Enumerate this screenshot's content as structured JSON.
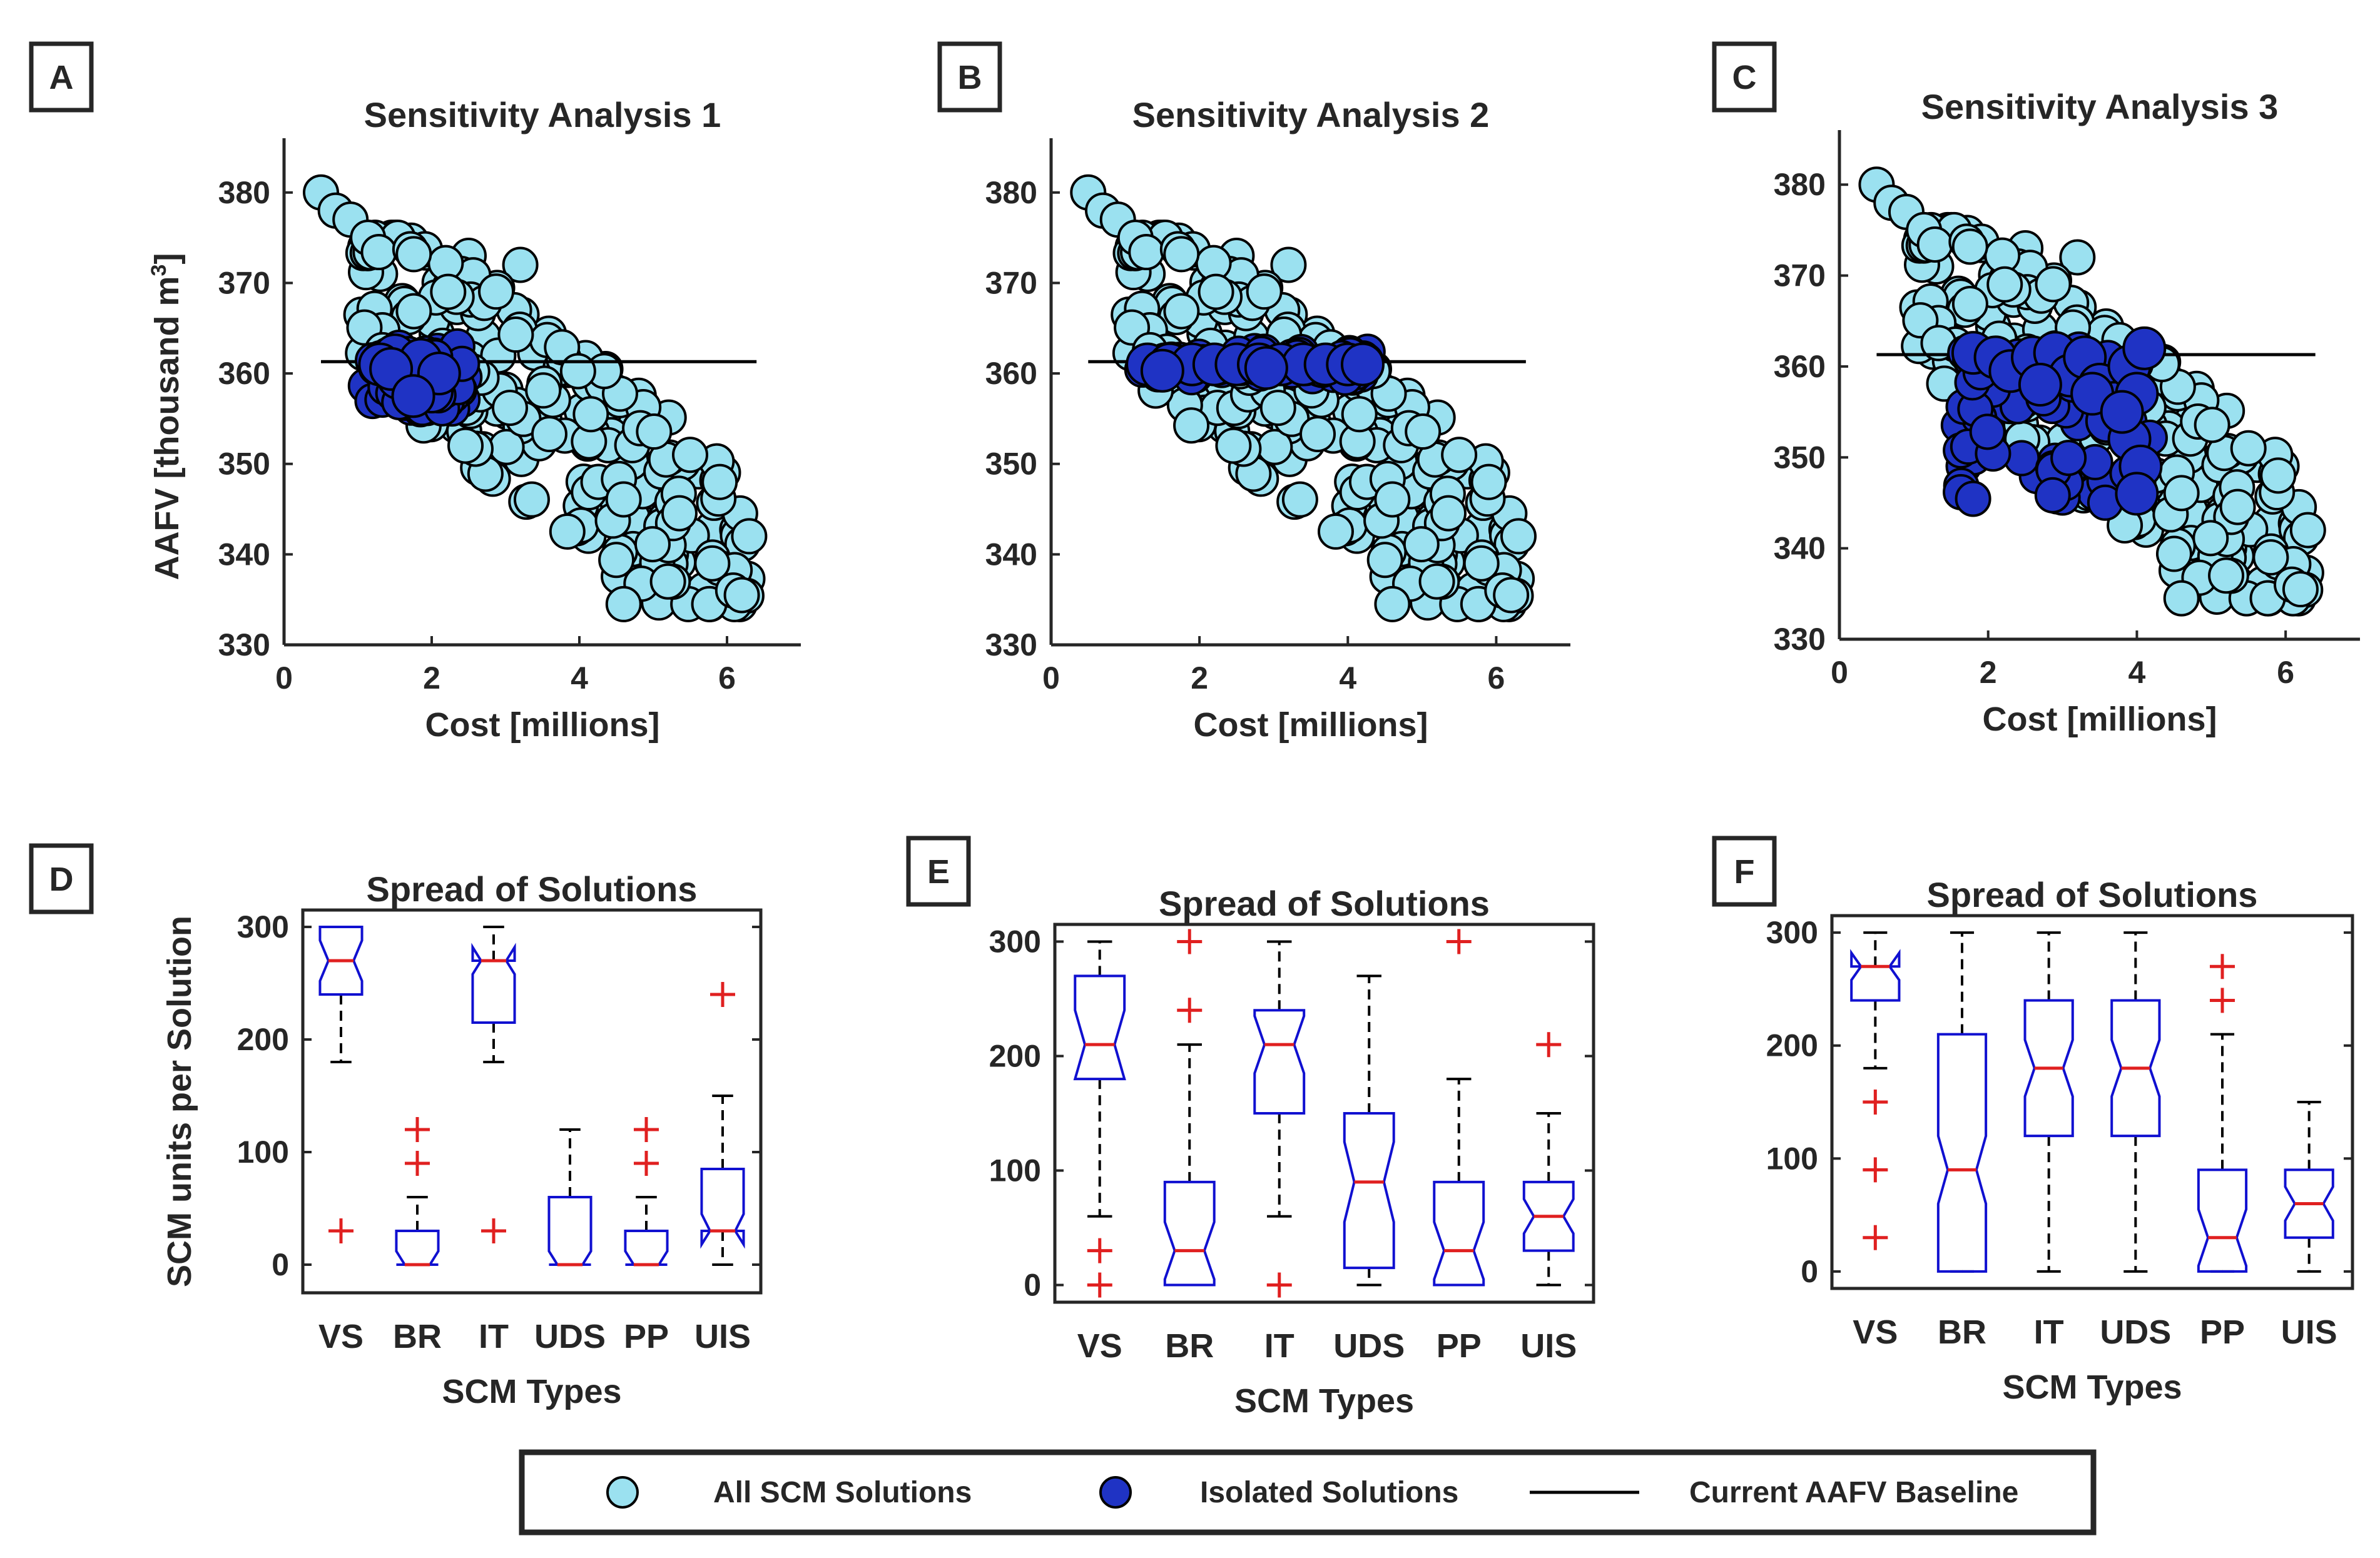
{
  "colors": {
    "all_solutions": "#9be1f0",
    "isolated": "#1f33c4",
    "box": "#1010d0",
    "median": "#e02020",
    "outlier": "#e02020",
    "axis": "#262626",
    "whisker": "#000000"
  },
  "legend": {
    "all": "All SCM Solutions",
    "isolated": "Isolated Solutions",
    "baseline": "Current AAFV Baseline"
  },
  "chart_data": [
    {
      "panel": "A",
      "type": "scatter",
      "title": "Sensitivity Analysis 1",
      "xlabel": "Cost [millions]",
      "ylabel": "AAFV [thousand m",
      "ylabel_sup": "3",
      "ylabel_end": "]",
      "xlim": [
        0,
        7
      ],
      "ylim": [
        330,
        386
      ],
      "xticks": [
        0,
        2,
        4,
        6
      ],
      "yticks": [
        330,
        340,
        350,
        360,
        370,
        380
      ],
      "baseline": {
        "y": 361.3,
        "x": [
          0.5,
          6.4
        ]
      },
      "isolated_cluster": {
        "x": [
          1.1,
          2.5
        ],
        "y": [
          356,
          363
        ]
      },
      "isolated_points": [
        [
          1.6,
          360
        ],
        [
          1.8,
          359
        ],
        [
          2.0,
          358
        ],
        [
          1.7,
          361
        ],
        [
          1.5,
          362
        ],
        [
          1.9,
          360.5
        ],
        [
          1.3,
          361
        ],
        [
          1.55,
          359.5
        ],
        [
          1.85,
          361.5
        ],
        [
          2.1,
          360
        ],
        [
          1.45,
          360.5
        ],
        [
          1.75,
          357.5
        ]
      ]
    },
    {
      "panel": "B",
      "type": "scatter",
      "title": "Sensitivity Analysis 2",
      "xlabel": "Cost [millions]",
      "ylabel": "",
      "xlim": [
        0,
        7
      ],
      "ylim": [
        330,
        386
      ],
      "xticks": [
        0,
        2,
        4,
        6
      ],
      "yticks": [
        330,
        340,
        350,
        360,
        370,
        380
      ],
      "baseline": {
        "y": 361.3,
        "x": [
          0.5,
          6.4
        ]
      },
      "isolated_cluster": {
        "x": [
          1.2,
          4.3
        ],
        "y": [
          359.5,
          362.5
        ]
      },
      "isolated_points": [
        [
          1.3,
          361
        ],
        [
          1.6,
          361
        ],
        [
          1.9,
          361
        ],
        [
          2.2,
          361
        ],
        [
          2.5,
          361
        ],
        [
          2.8,
          361
        ],
        [
          3.1,
          361
        ],
        [
          3.4,
          361
        ],
        [
          3.7,
          361
        ],
        [
          4.0,
          361
        ],
        [
          4.2,
          361
        ],
        [
          1.5,
          360.3
        ],
        [
          2.9,
          360.6
        ]
      ]
    },
    {
      "panel": "C",
      "type": "scatter",
      "title": "Sensitivity Analysis 3",
      "xlabel": "Cost [millions]",
      "ylabel": "",
      "xlim": [
        0,
        7
      ],
      "ylim": [
        330,
        386
      ],
      "xticks": [
        0,
        2,
        4,
        6
      ],
      "yticks": [
        330,
        340,
        350,
        360,
        370,
        380
      ],
      "baseline": {
        "y": 361.3,
        "x": [
          0.5,
          6.4
        ]
      },
      "isolated_cluster": {
        "x": [
          1.6,
          4.3
        ],
        "y": [
          345,
          363
        ]
      },
      "isolated_points": [
        [
          1.8,
          361.5
        ],
        [
          2.1,
          361
        ],
        [
          2.3,
          359.5
        ],
        [
          2.6,
          361
        ],
        [
          2.9,
          361.5
        ],
        [
          3.1,
          359
        ],
        [
          3.3,
          361
        ],
        [
          3.5,
          358
        ],
        [
          3.7,
          356
        ],
        [
          3.9,
          360
        ],
        [
          4.0,
          357
        ],
        [
          4.1,
          362
        ],
        [
          3.6,
          354
        ],
        [
          3.9,
          352
        ],
        [
          4.05,
          349
        ],
        [
          4.0,
          346
        ],
        [
          3.4,
          357
        ],
        [
          3.8,
          355
        ],
        [
          2.7,
          358
        ]
      ]
    },
    {
      "panel": "D",
      "type": "box",
      "title": "Spread of Solutions",
      "xlabel": "SCM Types",
      "ylabel": "SCM units per Solution",
      "categories": [
        "VS",
        "BR",
        "IT",
        "UDS",
        "PP",
        "UIS"
      ],
      "ylim": [
        -25,
        315
      ],
      "yticks": [
        0,
        100,
        200,
        300
      ],
      "series": [
        {
          "q1": 240,
          "median": 270,
          "q3": 300,
          "lo": 180,
          "hi": 300,
          "notch": [
            252,
            288
          ],
          "outliers": [
            30
          ]
        },
        {
          "q1": 0,
          "median": 0,
          "q3": 30,
          "lo": 0,
          "hi": 60,
          "notch": [
            0,
            12
          ],
          "outliers": [
            90,
            120
          ]
        },
        {
          "q1": 215,
          "median": 270,
          "q3": 270,
          "lo": 180,
          "hi": 300,
          "notch": [
            258,
            282
          ],
          "outliers": [
            30
          ]
        },
        {
          "q1": 0,
          "median": 0,
          "q3": 60,
          "lo": 0,
          "hi": 120,
          "notch": [
            0,
            12
          ],
          "outliers": []
        },
        {
          "q1": 0,
          "median": 0,
          "q3": 30,
          "lo": 0,
          "hi": 60,
          "notch": [
            0,
            12
          ],
          "outliers": [
            90,
            120
          ]
        },
        {
          "q1": 30,
          "median": 30,
          "q3": 85,
          "lo": 0,
          "hi": 150,
          "notch": [
            18,
            45
          ],
          "outliers": [
            240
          ]
        }
      ]
    },
    {
      "panel": "E",
      "type": "box",
      "title": "Spread of Solutions",
      "xlabel": "SCM Types",
      "ylabel": "",
      "categories": [
        "VS",
        "BR",
        "IT",
        "UDS",
        "PP",
        "UIS"
      ],
      "ylim": [
        -15,
        315
      ],
      "yticks": [
        0,
        100,
        200,
        300
      ],
      "series": [
        {
          "q1": 180,
          "median": 210,
          "q3": 270,
          "lo": 60,
          "hi": 300,
          "notch": [
            180,
            240
          ],
          "outliers": [
            30,
            0
          ]
        },
        {
          "q1": 0,
          "median": 30,
          "q3": 90,
          "lo": 0,
          "hi": 210,
          "notch": [
            5,
            55
          ],
          "outliers": [
            240,
            300
          ]
        },
        {
          "q1": 150,
          "median": 210,
          "q3": 240,
          "lo": 60,
          "hi": 300,
          "notch": [
            185,
            235
          ],
          "outliers": [
            0
          ]
        },
        {
          "q1": 15,
          "median": 90,
          "q3": 150,
          "lo": 0,
          "hi": 270,
          "notch": [
            55,
            125
          ],
          "outliers": []
        },
        {
          "q1": 0,
          "median": 30,
          "q3": 90,
          "lo": 0,
          "hi": 180,
          "notch": [
            5,
            55
          ],
          "outliers": [
            300
          ]
        },
        {
          "q1": 30,
          "median": 60,
          "q3": 90,
          "lo": 0,
          "hi": 150,
          "notch": [
            45,
            75
          ],
          "outliers": [
            210
          ]
        }
      ]
    },
    {
      "panel": "F",
      "type": "box",
      "title": "Spread of Solutions",
      "xlabel": "SCM Types",
      "ylabel": "",
      "categories": [
        "VS",
        "BR",
        "IT",
        "UDS",
        "PP",
        "UIS"
      ],
      "ylim": [
        -15,
        315
      ],
      "yticks": [
        0,
        100,
        200,
        300
      ],
      "series": [
        {
          "q1": 240,
          "median": 270,
          "q3": 270,
          "lo": 180,
          "hi": 300,
          "notch": [
            258,
            282
          ],
          "outliers": [
            150,
            90,
            30
          ]
        },
        {
          "q1": 0,
          "median": 90,
          "q3": 210,
          "lo": 0,
          "hi": 300,
          "notch": [
            60,
            120
          ],
          "outliers": []
        },
        {
          "q1": 120,
          "median": 180,
          "q3": 240,
          "lo": 0,
          "hi": 300,
          "notch": [
            155,
            205
          ],
          "outliers": []
        },
        {
          "q1": 120,
          "median": 180,
          "q3": 240,
          "lo": 0,
          "hi": 300,
          "notch": [
            155,
            205
          ],
          "outliers": []
        },
        {
          "q1": 0,
          "median": 30,
          "q3": 90,
          "lo": 0,
          "hi": 210,
          "notch": [
            5,
            55
          ],
          "outliers": [
            240,
            270
          ]
        },
        {
          "q1": 30,
          "median": 60,
          "q3": 90,
          "lo": 0,
          "hi": 150,
          "notch": [
            45,
            75
          ],
          "outliers": []
        }
      ]
    }
  ]
}
